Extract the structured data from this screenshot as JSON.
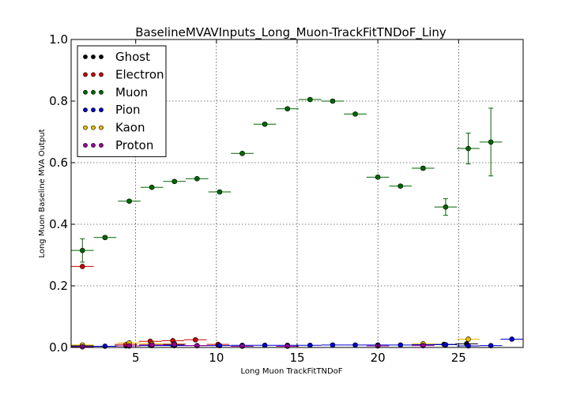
{
  "chart_data": {
    "type": "scatter",
    "title": "BaselineMVAVInputs_Long_Muon-TrackFitTNDoF_Liny",
    "xlabel": "Long Muon TrackFitTNDoF",
    "ylabel": "Long Muon Baseline MVA Output",
    "xlim": [
      1,
      29
    ],
    "ylim": [
      0,
      1.0
    ],
    "x_ticks": [
      5,
      10,
      15,
      20,
      25
    ],
    "y_ticks": [
      0.0,
      0.2,
      0.4,
      0.6,
      0.8,
      1.0
    ],
    "grid": true,
    "legend_position": "top-left",
    "series": [
      {
        "name": "Ghost",
        "color": "#000000",
        "points": [
          {
            "x": 1.7,
            "y": 0.005,
            "xerr": 0.7,
            "yerr": 0.0
          },
          {
            "x": 4.4,
            "y": 0.005,
            "xerr": 0.7,
            "yerr": 0.0
          },
          {
            "x": 5.9,
            "y": 0.008,
            "xerr": 0.7,
            "yerr": 0.0
          },
          {
            "x": 7.3,
            "y": 0.008,
            "xerr": 0.7,
            "yerr": 0.0
          },
          {
            "x": 24.1,
            "y": 0.01,
            "xerr": 0.7,
            "yerr": 0.0
          },
          {
            "x": 25.5,
            "y": 0.012,
            "xerr": 0.7,
            "yerr": 0.0
          }
        ]
      },
      {
        "name": "Electron",
        "color": "#cc0000",
        "points": [
          {
            "x": 1.7,
            "y": 0.263,
            "xerr": 0.7,
            "yerr": 0.0
          },
          {
            "x": 4.4,
            "y": 0.01,
            "xerr": 0.7,
            "yerr": 0.0
          },
          {
            "x": 5.9,
            "y": 0.02,
            "xerr": 0.7,
            "yerr": 0.0
          },
          {
            "x": 7.3,
            "y": 0.022,
            "xerr": 0.7,
            "yerr": 0.0
          },
          {
            "x": 8.7,
            "y": 0.025,
            "xerr": 0.7,
            "yerr": 0.0
          },
          {
            "x": 10.1,
            "y": 0.01,
            "xerr": 0.7,
            "yerr": 0.0
          }
        ]
      },
      {
        "name": "Muon",
        "color": "#006600",
        "points": [
          {
            "x": 1.7,
            "y": 0.315,
            "xerr": 0.7,
            "yerr": 0.038
          },
          {
            "x": 3.1,
            "y": 0.357,
            "xerr": 0.7,
            "yerr": 0.005
          },
          {
            "x": 4.6,
            "y": 0.475,
            "xerr": 0.7,
            "yerr": 0.004
          },
          {
            "x": 6.0,
            "y": 0.52,
            "xerr": 0.7,
            "yerr": 0.004
          },
          {
            "x": 7.4,
            "y": 0.539,
            "xerr": 0.7,
            "yerr": 0.004
          },
          {
            "x": 8.8,
            "y": 0.548,
            "xerr": 0.7,
            "yerr": 0.004
          },
          {
            "x": 10.2,
            "y": 0.505,
            "xerr": 0.7,
            "yerr": 0.004
          },
          {
            "x": 11.6,
            "y": 0.63,
            "xerr": 0.7,
            "yerr": 0.004
          },
          {
            "x": 13.0,
            "y": 0.725,
            "xerr": 0.7,
            "yerr": 0.004
          },
          {
            "x": 14.4,
            "y": 0.775,
            "xerr": 0.7,
            "yerr": 0.004
          },
          {
            "x": 15.8,
            "y": 0.805,
            "xerr": 0.7,
            "yerr": 0.004
          },
          {
            "x": 17.2,
            "y": 0.8,
            "xerr": 0.7,
            "yerr": 0.004
          },
          {
            "x": 18.6,
            "y": 0.758,
            "xerr": 0.7,
            "yerr": 0.004
          },
          {
            "x": 20.0,
            "y": 0.553,
            "xerr": 0.7,
            "yerr": 0.004
          },
          {
            "x": 21.4,
            "y": 0.524,
            "xerr": 0.7,
            "yerr": 0.004
          },
          {
            "x": 22.8,
            "y": 0.582,
            "xerr": 0.7,
            "yerr": 0.005
          },
          {
            "x": 24.2,
            "y": 0.456,
            "xerr": 0.7,
            "yerr": 0.027
          },
          {
            "x": 25.6,
            "y": 0.646,
            "xerr": 0.7,
            "yerr": 0.05
          },
          {
            "x": 27.0,
            "y": 0.667,
            "xerr": 0.7,
            "yerr": 0.11
          }
        ]
      },
      {
        "name": "Pion",
        "color": "#0000cc",
        "points": [
          {
            "x": 1.7,
            "y": 0.003,
            "xerr": 0.7,
            "yerr": 0.0
          },
          {
            "x": 3.1,
            "y": 0.004,
            "xerr": 0.7,
            "yerr": 0.0
          },
          {
            "x": 4.6,
            "y": 0.005,
            "xerr": 0.7,
            "yerr": 0.0
          },
          {
            "x": 6.0,
            "y": 0.006,
            "xerr": 0.7,
            "yerr": 0.0
          },
          {
            "x": 7.4,
            "y": 0.006,
            "xerr": 0.7,
            "yerr": 0.0
          },
          {
            "x": 8.8,
            "y": 0.006,
            "xerr": 0.7,
            "yerr": 0.0
          },
          {
            "x": 10.2,
            "y": 0.006,
            "xerr": 0.7,
            "yerr": 0.0
          },
          {
            "x": 11.6,
            "y": 0.007,
            "xerr": 0.7,
            "yerr": 0.0
          },
          {
            "x": 13.0,
            "y": 0.007,
            "xerr": 0.7,
            "yerr": 0.0
          },
          {
            "x": 14.4,
            "y": 0.007,
            "xerr": 0.7,
            "yerr": 0.0
          },
          {
            "x": 15.8,
            "y": 0.007,
            "xerr": 0.7,
            "yerr": 0.0
          },
          {
            "x": 17.2,
            "y": 0.008,
            "xerr": 0.7,
            "yerr": 0.0
          },
          {
            "x": 18.6,
            "y": 0.008,
            "xerr": 0.7,
            "yerr": 0.0
          },
          {
            "x": 20.0,
            "y": 0.008,
            "xerr": 0.7,
            "yerr": 0.0
          },
          {
            "x": 21.4,
            "y": 0.008,
            "xerr": 0.7,
            "yerr": 0.0
          },
          {
            "x": 22.8,
            "y": 0.009,
            "xerr": 0.7,
            "yerr": 0.0
          },
          {
            "x": 24.2,
            "y": 0.009,
            "xerr": 0.7,
            "yerr": 0.0
          },
          {
            "x": 25.6,
            "y": 0.005,
            "xerr": 0.7,
            "yerr": 0.0
          },
          {
            "x": 27.0,
            "y": 0.006,
            "xerr": 0.7,
            "yerr": 0.0
          },
          {
            "x": 28.3,
            "y": 0.027,
            "xerr": 0.7,
            "yerr": 0.0
          }
        ]
      },
      {
        "name": "Kaon",
        "color": "#e6b800",
        "points": [
          {
            "x": 1.7,
            "y": 0.008,
            "xerr": 0.7,
            "yerr": 0.0
          },
          {
            "x": 4.6,
            "y": 0.015,
            "xerr": 0.7,
            "yerr": 0.0
          },
          {
            "x": 6.0,
            "y": 0.012,
            "xerr": 0.7,
            "yerr": 0.0
          },
          {
            "x": 7.4,
            "y": 0.012,
            "xerr": 0.7,
            "yerr": 0.0
          },
          {
            "x": 22.8,
            "y": 0.012,
            "xerr": 0.7,
            "yerr": 0.0
          },
          {
            "x": 25.6,
            "y": 0.027,
            "xerr": 0.7,
            "yerr": 0.0
          }
        ]
      },
      {
        "name": "Proton",
        "color": "#990099",
        "points": [
          {
            "x": 1.7,
            "y": 0.002,
            "xerr": 0.7,
            "yerr": 0.0
          },
          {
            "x": 4.6,
            "y": 0.005,
            "xerr": 0.7,
            "yerr": 0.0
          },
          {
            "x": 6.0,
            "y": 0.008,
            "xerr": 0.7,
            "yerr": 0.0
          },
          {
            "x": 7.4,
            "y": 0.01,
            "xerr": 0.7,
            "yerr": 0.0
          },
          {
            "x": 8.8,
            "y": 0.006,
            "xerr": 0.7,
            "yerr": 0.0
          },
          {
            "x": 11.6,
            "y": 0.004,
            "xerr": 0.7,
            "yerr": 0.0
          },
          {
            "x": 14.4,
            "y": 0.004,
            "xerr": 0.7,
            "yerr": 0.0
          },
          {
            "x": 20.0,
            "y": 0.005,
            "xerr": 0.7,
            "yerr": 0.0
          },
          {
            "x": 22.8,
            "y": 0.006,
            "xerr": 0.7,
            "yerr": 0.0
          }
        ]
      }
    ]
  }
}
